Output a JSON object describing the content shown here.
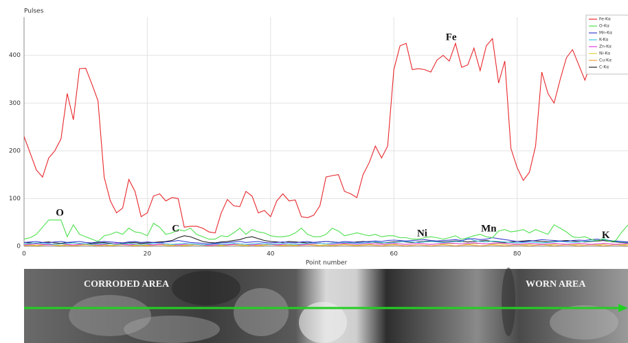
{
  "chart_data": {
    "type": "line",
    "y_label": "Pulses",
    "x_label": "Point number",
    "xlim": [
      0,
      98
    ],
    "ylim": [
      0,
      480
    ],
    "xticks": [
      0,
      20,
      40,
      60,
      80
    ],
    "yticks": [
      0,
      100,
      200,
      300,
      400
    ],
    "grid": true,
    "legend": "upper right",
    "x": [
      0,
      1,
      2,
      3,
      4,
      5,
      6,
      7,
      8,
      9,
      10,
      11,
      12,
      13,
      14,
      15,
      16,
      17,
      18,
      19,
      20,
      21,
      22,
      23,
      24,
      25,
      26,
      27,
      28,
      29,
      30,
      31,
      32,
      33,
      34,
      35,
      36,
      37,
      38,
      39,
      40,
      41,
      42,
      43,
      44,
      45,
      46,
      47,
      48,
      49,
      50,
      51,
      52,
      53,
      54,
      55,
      56,
      57,
      58,
      59,
      60,
      61,
      62,
      63,
      64,
      65,
      66,
      67,
      68,
      69,
      70,
      71,
      72,
      73,
      74,
      75,
      76,
      77,
      78,
      79,
      80,
      81,
      82,
      83,
      84,
      85,
      86,
      87,
      88,
      89,
      90,
      91,
      92,
      93,
      94,
      95,
      96,
      97,
      98
    ],
    "series": [
      {
        "name": "Fe-Kα",
        "color": "#e8262a",
        "values": [
          230,
          195,
          160,
          145,
          185,
          200,
          225,
          320,
          265,
          372,
          373,
          340,
          305,
          145,
          95,
          70,
          80,
          140,
          115,
          62,
          70,
          105,
          110,
          95,
          102,
          100,
          40,
          42,
          42,
          38,
          30,
          28,
          70,
          98,
          85,
          83,
          115,
          105,
          70,
          75,
          62,
          95,
          110,
          95,
          97,
          62,
          60,
          65,
          85,
          145,
          148,
          150,
          115,
          110,
          102,
          150,
          175,
          210,
          185,
          210,
          370,
          420,
          425,
          370,
          372,
          370,
          365,
          390,
          400,
          388,
          425,
          375,
          380,
          415,
          368,
          420,
          435,
          342,
          388,
          205,
          165,
          138,
          155,
          210,
          365,
          320,
          300,
          350,
          395,
          412,
          380,
          348,
          385,
          390,
          395,
          385,
          370,
          390,
          395
        ]
      },
      {
        "name": "O-Kα",
        "color": "#4ce04c",
        "values": [
          15,
          18,
          25,
          40,
          55,
          55,
          55,
          20,
          45,
          25,
          20,
          15,
          10,
          22,
          25,
          30,
          25,
          38,
          30,
          28,
          22,
          48,
          40,
          25,
          28,
          35,
          32,
          38,
          25,
          20,
          15,
          15,
          22,
          20,
          28,
          38,
          25,
          35,
          30,
          28,
          22,
          20,
          20,
          22,
          28,
          38,
          25,
          20,
          20,
          25,
          38,
          32,
          22,
          25,
          28,
          25,
          22,
          25,
          20,
          22,
          22,
          18,
          18,
          15,
          15,
          18,
          20,
          18,
          15,
          18,
          22,
          15,
          18,
          22,
          25,
          20,
          18,
          32,
          35,
          30,
          32,
          35,
          28,
          35,
          30,
          25,
          45,
          38,
          30,
          20,
          18,
          20,
          15,
          12,
          15,
          10,
          12,
          30,
          45
        ]
      },
      {
        "name": "Mn-Kα",
        "color": "#3c3cd0",
        "values": [
          8,
          9,
          10,
          8,
          7,
          9,
          10,
          8,
          9,
          10,
          8,
          7,
          9,
          10,
          9,
          8,
          7,
          9,
          10,
          8,
          9,
          8,
          7,
          9,
          10,
          12,
          10,
          8,
          7,
          6,
          5,
          6,
          7,
          8,
          9,
          10,
          8,
          9,
          10,
          8,
          7,
          8,
          9,
          8,
          7,
          9,
          10,
          8,
          9,
          10,
          9,
          8,
          10,
          9,
          8,
          9,
          10,
          11,
          10,
          12,
          13,
          12,
          11,
          12,
          13,
          14,
          12,
          11,
          12,
          13,
          14,
          12,
          15,
          16,
          14,
          15,
          18,
          16,
          14,
          12,
          10,
          9,
          11,
          12,
          14,
          13,
          12,
          11,
          10,
          12,
          13,
          12,
          14,
          15,
          13,
          12,
          11,
          10,
          9
        ]
      },
      {
        "name": "K-Kα",
        "color": "#3cc4e0",
        "values": [
          5,
          6,
          7,
          6,
          5,
          4,
          5,
          6,
          7,
          6,
          5,
          4,
          5,
          6,
          5,
          4,
          5,
          6,
          5,
          4,
          5,
          6,
          7,
          5,
          4,
          5,
          6,
          5,
          4,
          3,
          4,
          5,
          4,
          5,
          6,
          5,
          4,
          5,
          6,
          5,
          4,
          5,
          6,
          5,
          4,
          5,
          6,
          7,
          6,
          5,
          6,
          7,
          8,
          7,
          6,
          7,
          8,
          9,
          8,
          7,
          8,
          9,
          10,
          9,
          8,
          9,
          10,
          9,
          8,
          9,
          10,
          9,
          18,
          12,
          10,
          9,
          11,
          10,
          9,
          8,
          7,
          8,
          9,
          8,
          7,
          8,
          9,
          10,
          9,
          8,
          9,
          10,
          11,
          12,
          16,
          12,
          10,
          9,
          8
        ]
      },
      {
        "name": "Zn-Kα",
        "color": "#e040e0",
        "values": [
          3,
          4,
          5,
          4,
          3,
          4,
          5,
          4,
          3,
          4,
          5,
          4,
          3,
          4,
          5,
          6,
          4,
          3,
          4,
          5,
          4,
          3,
          4,
          5,
          4,
          3,
          4,
          5,
          4,
          3,
          2,
          3,
          4,
          3,
          4,
          5,
          4,
          3,
          4,
          5,
          4,
          3,
          4,
          5,
          4,
          3,
          4,
          5,
          6,
          5,
          4,
          5,
          6,
          5,
          4,
          5,
          6,
          5,
          4,
          5,
          6,
          5,
          4,
          5,
          6,
          5,
          4,
          5,
          6,
          7,
          6,
          5,
          6,
          7,
          6,
          5,
          6,
          7,
          6,
          5,
          4,
          5,
          6,
          5,
          4,
          5,
          6,
          5,
          4,
          5,
          6,
          5,
          4,
          5,
          6,
          5,
          4,
          5,
          6
        ]
      },
      {
        "name": "Ni-Kα",
        "color": "#d8d040",
        "values": [
          2,
          3,
          2,
          3,
          4,
          3,
          2,
          3,
          2,
          3,
          4,
          3,
          2,
          3,
          2,
          3,
          4,
          3,
          2,
          3,
          2,
          3,
          4,
          3,
          2,
          3,
          2,
          3,
          4,
          3,
          2,
          3,
          2,
          3,
          4,
          3,
          2,
          3,
          2,
          3,
          4,
          3,
          2,
          3,
          2,
          3,
          4,
          3,
          2,
          3,
          2,
          3,
          4,
          3,
          2,
          3,
          4,
          5,
          4,
          3,
          4,
          5,
          4,
          5,
          6,
          5,
          4,
          5,
          4,
          5,
          6,
          5,
          4,
          5,
          6,
          5,
          4,
          5,
          4,
          5,
          4,
          3,
          4,
          5,
          4,
          3,
          4,
          5,
          4,
          3,
          4,
          5,
          4,
          3,
          4,
          5,
          4,
          3,
          4
        ]
      },
      {
        "name": "Cu-Kα",
        "color": "#f0a040",
        "values": [
          1,
          2,
          1,
          2,
          3,
          2,
          1,
          2,
          1,
          2,
          3,
          2,
          1,
          2,
          1,
          2,
          3,
          2,
          1,
          2,
          1,
          2,
          3,
          2,
          1,
          2,
          1,
          2,
          3,
          2,
          1,
          2,
          1,
          2,
          3,
          2,
          1,
          2,
          1,
          2,
          3,
          2,
          1,
          2,
          1,
          2,
          3,
          2,
          1,
          2,
          1,
          2,
          3,
          2,
          1,
          2,
          3,
          2,
          1,
          2,
          3,
          2,
          1,
          2,
          3,
          2,
          1,
          2,
          3,
          2,
          1,
          2,
          3,
          2,
          1,
          2,
          3,
          2,
          1,
          2,
          3,
          2,
          1,
          2,
          3,
          2,
          1,
          2,
          3,
          2,
          1,
          2,
          3,
          2,
          1,
          2,
          3,
          2,
          1
        ]
      },
      {
        "name": "C-Kα",
        "color": "#202020",
        "values": [
          8,
          7,
          6,
          8,
          9,
          7,
          6,
          8,
          7,
          6,
          5,
          6,
          7,
          8,
          6,
          5,
          6,
          7,
          8,
          6,
          7,
          8,
          9,
          10,
          12,
          18,
          22,
          20,
          15,
          10,
          8,
          7,
          9,
          10,
          12,
          14,
          18,
          20,
          16,
          12,
          10,
          9,
          8,
          10,
          9,
          8,
          7,
          8,
          9,
          10,
          9,
          8,
          7,
          8,
          9,
          10,
          9,
          8,
          7,
          8,
          9,
          10,
          9,
          8,
          9,
          10,
          11,
          10,
          9,
          10,
          11,
          10,
          9,
          10,
          11,
          12,
          10,
          9,
          8,
          9,
          10,
          11,
          12,
          11,
          10,
          9,
          10,
          11,
          12,
          11,
          10,
          9,
          10,
          11,
          12,
          10,
          9,
          8,
          7
        ]
      }
    ],
    "annotations": [
      {
        "text": "O",
        "x": 5.8,
        "y": 69
      },
      {
        "text": "C",
        "x": 24.6,
        "y": 36
      },
      {
        "text": "Fe",
        "x": 69.3,
        "y": 437
      },
      {
        "text": "Ni",
        "x": 64.6,
        "y": 26
      },
      {
        "text": "Mn",
        "x": 75.4,
        "y": 36
      },
      {
        "text": "K",
        "x": 94.4,
        "y": 22
      }
    ]
  },
  "image": {
    "labels": [
      "CORRODED AREA",
      "WORN AREA"
    ]
  }
}
